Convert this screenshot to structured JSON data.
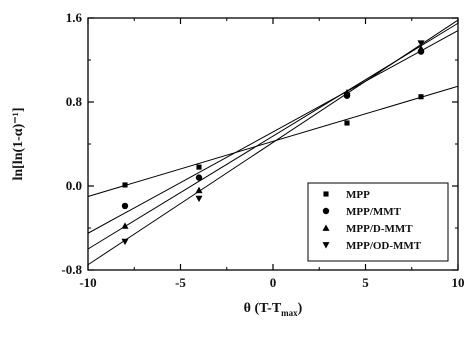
{
  "chart_data": {
    "type": "scatter",
    "title": "",
    "xlabel": {
      "main": "θ (T-T",
      "sub": "max",
      "end": ")"
    },
    "ylabel": "ln[ln(1-α)⁻¹]",
    "xlim": [
      -10,
      10
    ],
    "ylim": [
      -0.8,
      1.6
    ],
    "xticks": [
      -10,
      -5,
      0,
      5,
      10
    ],
    "xtick_labels": [
      "-10",
      "-5",
      "0",
      "5",
      "10"
    ],
    "yticks": [
      -0.8,
      0.0,
      0.8,
      1.6
    ],
    "ytick_labels": [
      "-0.8",
      "0.0",
      "0.8",
      "1.6"
    ],
    "grid": false,
    "legend_position": "bottom-right",
    "series": [
      {
        "name": "MPP",
        "marker": "square",
        "points": [
          [
            -8,
            0.01
          ],
          [
            -4,
            0.18
          ],
          [
            4,
            0.6
          ],
          [
            8,
            0.85
          ]
        ],
        "fit": [
          [
            -10,
            -0.1
          ],
          [
            10,
            0.95
          ]
        ]
      },
      {
        "name": "MPP/MMT",
        "marker": "circle",
        "points": [
          [
            -8,
            -0.19
          ],
          [
            -4,
            0.08
          ],
          [
            4,
            0.86
          ],
          [
            8,
            1.28
          ]
        ],
        "fit": [
          [
            -10,
            -0.45
          ],
          [
            10,
            1.48
          ]
        ]
      },
      {
        "name": "MPP/D-MMT",
        "marker": "triangle-up",
        "points": [
          [
            -8,
            -0.38
          ],
          [
            -4,
            -0.04
          ],
          [
            4,
            0.89
          ],
          [
            8,
            1.31
          ]
        ],
        "fit": [
          [
            -10,
            -0.6
          ],
          [
            10,
            1.55
          ]
        ]
      },
      {
        "name": "MPP/OD-MMT",
        "marker": "triangle-down",
        "points": [
          [
            -8,
            -0.53
          ],
          [
            -4,
            -0.12
          ],
          [
            4,
            0.86
          ],
          [
            8,
            1.36
          ]
        ],
        "fit": [
          [
            -10,
            -0.75
          ],
          [
            10,
            1.58
          ]
        ]
      }
    ]
  }
}
